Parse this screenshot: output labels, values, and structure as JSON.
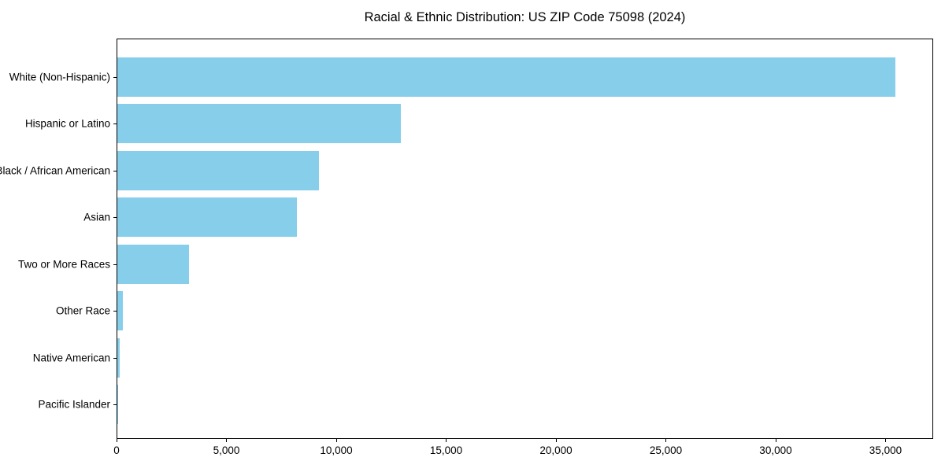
{
  "figure": {
    "title": "Racial & Ethnic Distribution: US ZIP Code 75098 (2024)"
  },
  "chart_data": {
    "type": "bar",
    "orientation": "horizontal",
    "title": "Racial & Ethnic Distribution: US ZIP Code 75098 (2024)",
    "categories": [
      "White (Non-Hispanic)",
      "Hispanic or Latino",
      "Black / African American",
      "Asian",
      "Two or More Races",
      "Other Race",
      "Native American",
      "Pacific Islander"
    ],
    "values": [
      35400,
      12900,
      9170,
      8160,
      3260,
      240,
      120,
      25
    ],
    "xlabel": "",
    "ylabel": "",
    "xlim": [
      0,
      37170
    ],
    "xticks": [
      0,
      5000,
      10000,
      15000,
      20000,
      25000,
      30000,
      35000
    ],
    "xtick_labels": [
      "0",
      "5,000",
      "10,000",
      "15,000",
      "20,000",
      "25,000",
      "30,000",
      "35,000"
    ],
    "bar_color": "#87CEEB",
    "grid": false,
    "legend_position": "none"
  }
}
